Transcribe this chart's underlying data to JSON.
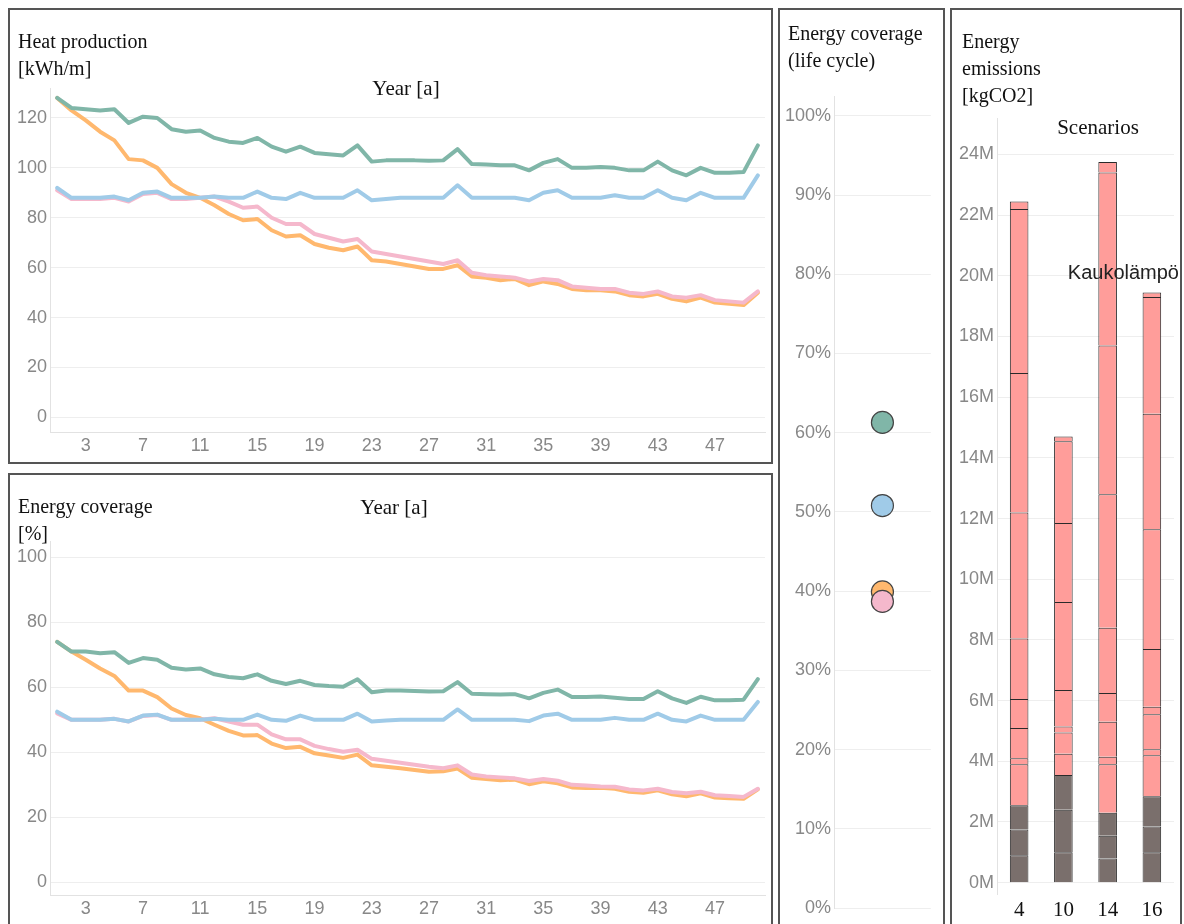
{
  "chart_data": [
    {
      "type": "line",
      "ylabel": "Heat production [kWh/m]",
      "xlabel": "Year [a]",
      "grid": "y",
      "legend": false,
      "x": [
        1,
        2,
        3,
        4,
        5,
        6,
        7,
        8,
        9,
        10,
        11,
        12,
        13,
        14,
        15,
        16,
        17,
        18,
        19,
        20,
        21,
        22,
        23,
        24,
        25,
        26,
        27,
        28,
        29,
        30,
        31,
        32,
        33,
        34,
        35,
        36,
        37,
        38,
        39,
        40,
        41,
        42,
        43,
        44,
        45,
        46,
        47,
        48,
        49,
        50
      ],
      "xlim": [
        0.5,
        50.5
      ],
      "xticks": [
        3,
        7,
        11,
        15,
        19,
        23,
        27,
        31,
        35,
        39,
        43,
        47
      ],
      "ylim": [
        -6,
        132
      ],
      "yticks": [
        0,
        20,
        40,
        60,
        80,
        100,
        120
      ],
      "series": [
        {
          "color": "#80b6a8",
          "values": [
            128,
            124,
            123.5,
            123,
            123.5,
            118,
            120.5,
            120,
            115.5,
            114.5,
            115,
            112,
            110.5,
            110,
            112,
            108.5,
            106.5,
            108.5,
            106,
            105.5,
            105,
            109,
            102.5,
            103,
            103,
            103,
            102.8,
            103,
            107.5,
            101.5,
            101.3,
            101,
            101,
            99,
            102,
            103.5,
            100,
            100,
            100.3,
            100,
            99,
            99,
            102.5,
            99,
            97,
            100,
            98,
            98,
            98.3,
            109
          ]
        },
        {
          "color": "#a0cbe8",
          "values": [
            92,
            88,
            88,
            88,
            88.5,
            87,
            90,
            90.5,
            88,
            88,
            88,
            88.5,
            88,
            88,
            90.5,
            88,
            87.5,
            90,
            88,
            88,
            88,
            91,
            87,
            87.5,
            88,
            88,
            88,
            88,
            93,
            88,
            88,
            88,
            88,
            87,
            90,
            91,
            88,
            88,
            88,
            89,
            88,
            88,
            91,
            88,
            87,
            90,
            88,
            88,
            88,
            97
          ]
        },
        {
          "color": "#f5b8cc",
          "values": [
            91,
            87.5,
            87.5,
            87.5,
            88,
            86.5,
            89.5,
            90,
            87.5,
            87.5,
            88,
            88.5,
            86.5,
            84,
            84.5,
            80,
            77.5,
            77.5,
            73.5,
            72,
            70.5,
            71.5,
            66.5,
            65.5,
            64.5,
            63.5,
            62.5,
            61.5,
            63,
            58,
            57,
            56.5,
            56,
            54.5,
            55.5,
            55,
            52.5,
            52,
            51.5,
            51.5,
            50,
            49.5,
            50.5,
            48.5,
            48,
            49,
            47,
            46.5,
            46,
            50.5
          ]
        },
        {
          "color": "#ffb86e",
          "values": [
            128,
            123,
            119,
            114.5,
            111,
            103.5,
            103,
            100,
            93.5,
            90,
            88,
            85,
            81.5,
            79,
            79.5,
            75,
            72.5,
            73,
            69.5,
            68,
            67,
            68.5,
            63,
            62.5,
            61.5,
            60.5,
            59.5,
            59.5,
            61,
            56.5,
            56,
            55,
            55.5,
            53,
            54.5,
            53.5,
            51.5,
            51,
            51,
            50.5,
            49,
            48.5,
            49.5,
            47.5,
            46.5,
            48,
            46,
            45.5,
            45,
            50
          ]
        }
      ]
    },
    {
      "type": "line",
      "ylabel": "Energy coverage [%]",
      "xlabel": "Year [a]",
      "grid": "y",
      "legend": false,
      "x": [
        1,
        2,
        3,
        4,
        5,
        6,
        7,
        8,
        9,
        10,
        11,
        12,
        13,
        14,
        15,
        16,
        17,
        18,
        19,
        20,
        21,
        22,
        23,
        24,
        25,
        26,
        27,
        28,
        29,
        30,
        31,
        32,
        33,
        34,
        35,
        36,
        37,
        38,
        39,
        40,
        41,
        42,
        43,
        44,
        45,
        46,
        47,
        48,
        49,
        50
      ],
      "xlim": [
        0.5,
        50.5
      ],
      "xticks": [
        3,
        7,
        11,
        15,
        19,
        23,
        27,
        31,
        35,
        39,
        43,
        47
      ],
      "ylim": [
        -4,
        105
      ],
      "yticks": [
        0,
        20,
        40,
        60,
        80,
        100
      ],
      "series": [
        {
          "color": "#80b6a8",
          "values": [
            74,
            71,
            71,
            70.5,
            70.8,
            67.5,
            69,
            68.5,
            66,
            65.5,
            65.8,
            64,
            63.2,
            62.8,
            64,
            62,
            61,
            62,
            60.7,
            60.4,
            60.2,
            62.5,
            58.5,
            59,
            59,
            58.9,
            58.7,
            58.8,
            61.6,
            58,
            57.9,
            57.8,
            57.9,
            56.6,
            58.3,
            59.3,
            57,
            57,
            57.2,
            56.8,
            56.4,
            56.4,
            58.8,
            56.6,
            55.2,
            57.1,
            56,
            56,
            56.2,
            62.5
          ]
        },
        {
          "color": "#a0cbe8",
          "values": [
            52.5,
            50,
            50,
            50,
            50.3,
            49.5,
            51.3,
            51.6,
            50,
            50,
            50,
            50.3,
            50,
            50,
            51.6,
            50,
            49.7,
            51.3,
            50,
            50,
            50,
            51.9,
            49.5,
            49.8,
            50,
            50,
            50,
            50,
            53.2,
            50,
            50,
            50,
            50,
            49.6,
            51.3,
            51.9,
            50,
            50,
            50,
            50.6,
            50,
            50,
            51.9,
            50,
            49.5,
            51.3,
            50,
            50,
            50,
            55.5
          ]
        },
        {
          "color": "#f5b8cc",
          "values": [
            52,
            50,
            50,
            50,
            50.3,
            49.5,
            51.2,
            51.5,
            50,
            50,
            50,
            50.5,
            49.5,
            48.5,
            48.5,
            45.5,
            44,
            44,
            42,
            41,
            40.2,
            40.8,
            38,
            37.4,
            36.8,
            36.2,
            35.6,
            35.1,
            36,
            33.2,
            32.6,
            32.3,
            32,
            31.2,
            31.8,
            31.3,
            30,
            29.8,
            29.5,
            29.4,
            28.6,
            28.3,
            28.8,
            27.8,
            27.4,
            27.9,
            26.8,
            26.6,
            26.3,
            28.8
          ]
        },
        {
          "color": "#ffb86e",
          "values": [
            74,
            71,
            68.5,
            65.8,
            63.5,
            59,
            59,
            57,
            53.5,
            51.5,
            50.5,
            48.5,
            46.6,
            45.2,
            45.3,
            42.7,
            41.3,
            41.7,
            39.7,
            39,
            38.3,
            39.3,
            36,
            35.6,
            35.1,
            34.6,
            34,
            34.2,
            35,
            32.2,
            31.8,
            31.4,
            31.6,
            30.2,
            31.1,
            30.5,
            29.2,
            29,
            29.1,
            28.8,
            27.9,
            27.6,
            28.3,
            27.1,
            26.5,
            27.4,
            26.1,
            25.9,
            25.7,
            28.6
          ]
        }
      ]
    },
    {
      "type": "scatter",
      "ylabel": "Energy coverage (life cycle)",
      "grid": "y",
      "legend": false,
      "marker": "circle",
      "tick_labels": "y",
      "categories": [
        null
      ],
      "ylim": [
        0,
        102.5
      ],
      "yticks": [
        {
          "value": 0,
          "label": "0%"
        },
        {
          "value": 10,
          "label": "10%"
        },
        {
          "value": 20,
          "label": "20%"
        },
        {
          "value": 30,
          "label": "30%"
        },
        {
          "value": 40,
          "label": "40%"
        },
        {
          "value": 50,
          "label": "50%"
        },
        {
          "value": 60,
          "label": "60%"
        },
        {
          "value": 70,
          "label": "70%"
        },
        {
          "value": 80,
          "label": "80%"
        },
        {
          "value": 90,
          "label": "90%"
        },
        {
          "value": 100,
          "label": "100%"
        }
      ],
      "series": [
        {
          "color": "#80b6a8",
          "values": [
            61.3
          ]
        },
        {
          "color": "#a0cbe8",
          "values": [
            50.8
          ]
        },
        {
          "color": "#f5b8cc",
          "values": [
            38.7
          ]
        },
        {
          "color": "#ffb86e",
          "values": [
            39.9
          ]
        }
      ]
    },
    {
      "type": "bar",
      "stacked": true,
      "ylabel": "Energy emissions [kgCO2]",
      "xlabel": "Scenarios",
      "grid": "y",
      "legend": false,
      "categories": [
        "4",
        "10",
        "14",
        "16"
      ],
      "ylim": [
        -0.4,
        25.2
      ],
      "yticks": [
        {
          "value": 0,
          "label": "0M"
        },
        {
          "value": 2,
          "label": "2M"
        },
        {
          "value": 4,
          "label": "4M"
        },
        {
          "value": 6,
          "label": "6M"
        },
        {
          "value": 8,
          "label": "8M"
        },
        {
          "value": 10,
          "label": "10M"
        },
        {
          "value": 12,
          "label": "12M"
        },
        {
          "value": 14,
          "label": "14M"
        },
        {
          "value": 16,
          "label": "16M"
        },
        {
          "value": 18,
          "label": "18M"
        },
        {
          "value": 20,
          "label": "20M"
        },
        {
          "value": 22,
          "label": "22M"
        },
        {
          "value": 24,
          "label": "24M"
        }
      ],
      "annotations": [
        "Kaukolämpö"
      ],
      "series": [
        {
          "color": "#7a6f6c",
          "values": [
            0.9,
            1.0,
            0.8,
            1.0
          ]
        },
        {
          "color": "#7a6f6c",
          "values": [
            0.85,
            1.4,
            0.75,
            0.85
          ]
        },
        {
          "color": "#7a6f6c",
          "values": [
            0.8,
            1.15,
            0.75,
            1.0
          ]
        },
        {
          "color": "#ff9d9a",
          "values": [
            1.35,
            0.7,
            1.6,
            1.35
          ]
        },
        {
          "color": "#ff9d9a",
          "values": [
            0.2,
            0.7,
            0.25,
            0.2
          ]
        },
        {
          "color": "#ff9d9a",
          "values": [
            1.0,
            0.2,
            1.15,
            1.15
          ]
        },
        {
          "color": "#ff9d9a",
          "values": [
            0.95,
            1.2,
            0.95,
            0.25
          ]
        },
        {
          "color": "#ff9d9a",
          "values": [
            2.0,
            2.9,
            2.15,
            1.9
          ]
        },
        {
          "color": "#ff9d9a",
          "values": [
            4.15,
            2.6,
            4.4,
            3.95
          ]
        },
        {
          "color": "#ff9d9a",
          "values": [
            4.6,
            2.7,
            4.9,
            3.8
          ]
        },
        {
          "color": "#ff9d9a",
          "values": [
            5.4,
            0.15,
            5.7,
            3.85
          ]
        },
        {
          "color": "#ff9d9a",
          "values": [
            0.25,
            null,
            0.35,
            0.15
          ]
        }
      ]
    }
  ]
}
